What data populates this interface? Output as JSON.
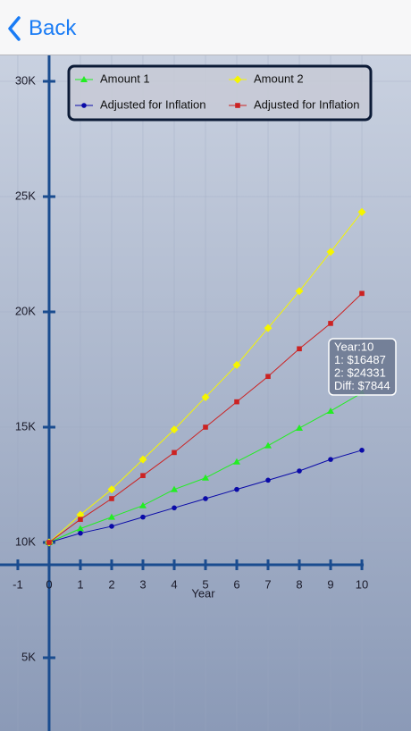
{
  "nav": {
    "back": "Back"
  },
  "chart_data": {
    "type": "line",
    "xlabel": "Year",
    "x": [
      0,
      1,
      2,
      3,
      4,
      5,
      6,
      7,
      8,
      9,
      10
    ],
    "series": [
      {
        "name": "Amount 1",
        "color": "#22ee22",
        "marker": "triangle",
        "values": [
          10000,
          10600,
          11100,
          11600,
          12300,
          12800,
          13500,
          14200,
          14960,
          15700,
          16487
        ]
      },
      {
        "name": "Amount 2",
        "color": "#f5f500",
        "marker": "diamond",
        "values": [
          10000,
          11200,
          12300,
          13600,
          14900,
          16300,
          17700,
          19300,
          20900,
          22600,
          24331
        ]
      },
      {
        "name": "Adjusted for Inflation",
        "color": "#0a0aa8",
        "marker": "circle",
        "values": [
          10000,
          10400,
          10700,
          11100,
          11500,
          11900,
          12300,
          12700,
          13100,
          13600,
          14000
        ]
      },
      {
        "name": "Adjusted for Inflation",
        "color": "#cc2222",
        "marker": "square",
        "values": [
          10000,
          11000,
          11900,
          12900,
          13900,
          15000,
          16100,
          17200,
          18400,
          19500,
          20800
        ]
      }
    ],
    "xlim": [
      -1.57,
      11.57
    ],
    "xticks": [
      -1,
      0,
      1,
      2,
      3,
      4,
      5,
      6,
      7,
      8,
      9,
      10
    ],
    "ylim": [
      1822,
      31124
    ],
    "yticks": [
      {
        "value": 5000,
        "label": "5K"
      },
      {
        "value": 10000,
        "label": "10K"
      },
      {
        "value": 15000,
        "label": "15K"
      },
      {
        "value": 20000,
        "label": "20K"
      },
      {
        "value": 25000,
        "label": "25K"
      },
      {
        "value": 30000,
        "label": "30K"
      }
    ],
    "grid": true,
    "tooltip": [
      "Year:10",
      "1: $16487",
      "2: $24331",
      "Diff: $7844"
    ]
  }
}
